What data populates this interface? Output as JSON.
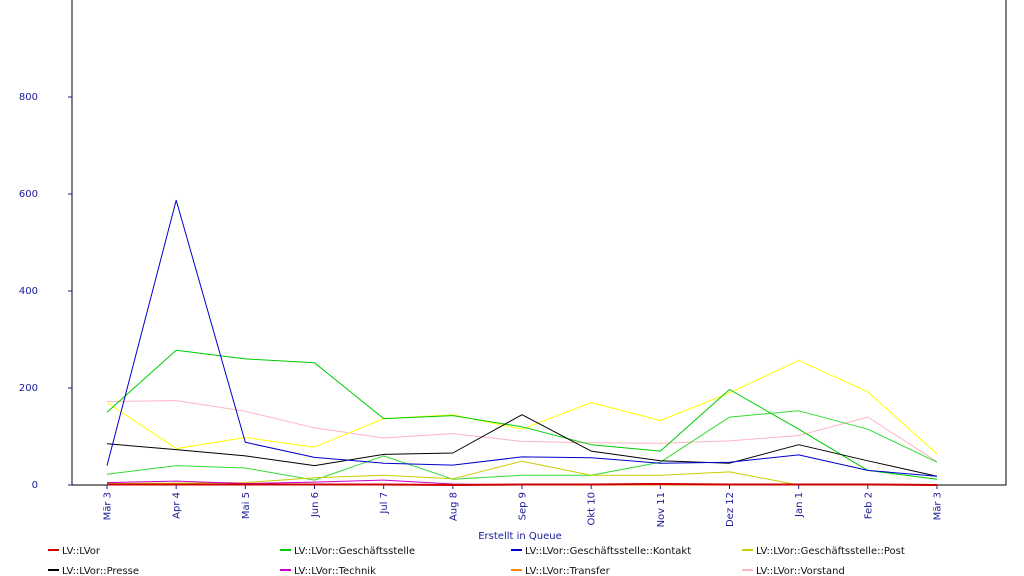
{
  "chart_data": {
    "type": "line",
    "xlabel": "Erstellt in Queue",
    "ylabel": "",
    "ylim": [
      0,
      1000
    ],
    "yticks": [
      0,
      200,
      400,
      600,
      800
    ],
    "grid": false,
    "legend_position": "bottom",
    "categories": [
      "Mär 3",
      "Apr 4",
      "Mai 5",
      "Jun 6",
      "Jul 7",
      "Aug 8",
      "Sep 9",
      "Okt 10",
      "Nov 11",
      "Dez 12",
      "Jan 1",
      "Feb 2",
      "Mär 3"
    ],
    "series": [
      {
        "name": "LV::LVor",
        "color": "#cc0000",
        "values": [
          1,
          1,
          1,
          1,
          1,
          0,
          1,
          1,
          2,
          1,
          1,
          1,
          0
        ]
      },
      {
        "name": "LV::LVor::Geschäftsstelle",
        "color": "#00cc00",
        "values": [
          150,
          278,
          260,
          252,
          137,
          143,
          120,
          83,
          70,
          197,
          115,
          30,
          12
        ]
      },
      {
        "name": "LV::LVor::Geschäftsstelle::Kontakt",
        "color": "#0000cc",
        "values": [
          40,
          587,
          88,
          57,
          45,
          41,
          58,
          56,
          45,
          47,
          62,
          30,
          18
        ]
      },
      {
        "name": "LV::LVor::Geschäftsstelle::Post",
        "color": "#cccc00",
        "values": [
          3,
          4,
          5,
          15,
          20,
          13,
          49,
          20,
          20,
          27,
          0,
          0,
          0
        ]
      },
      {
        "name": "LV::LVor::Presse",
        "color": "#000000",
        "values": [
          85,
          73,
          60,
          40,
          63,
          66,
          145,
          70,
          50,
          45,
          83,
          50,
          18
        ]
      },
      {
        "name": "LV::LVor::Technik",
        "color": "#cc00cc",
        "values": [
          5,
          8,
          3,
          6,
          10,
          2,
          0,
          0,
          0,
          0,
          0,
          0,
          0
        ]
      },
      {
        "name": "LV::LVor::Transfer",
        "color": "#ff8800",
        "values": [
          0,
          0,
          0,
          0,
          0,
          0,
          0,
          0,
          0,
          0,
          0,
          0,
          0
        ]
      },
      {
        "name": "LV::LVor::Vorstand",
        "color": "#ffb6c1",
        "values": [
          172,
          174,
          152,
          118,
          97,
          106,
          90,
          87,
          86,
          91,
          102,
          140,
          48
        ]
      },
      {
        "name": "",
        "color": "#ffff00",
        "values": [
          170,
          75,
          98,
          78,
          137,
          145,
          115,
          170,
          133,
          190,
          257,
          192,
          64
        ]
      },
      {
        "name": "",
        "color": "#33dd33",
        "values": [
          22,
          40,
          35,
          10,
          60,
          12,
          20,
          20,
          47,
          140,
          153,
          115,
          47
        ]
      }
    ]
  }
}
